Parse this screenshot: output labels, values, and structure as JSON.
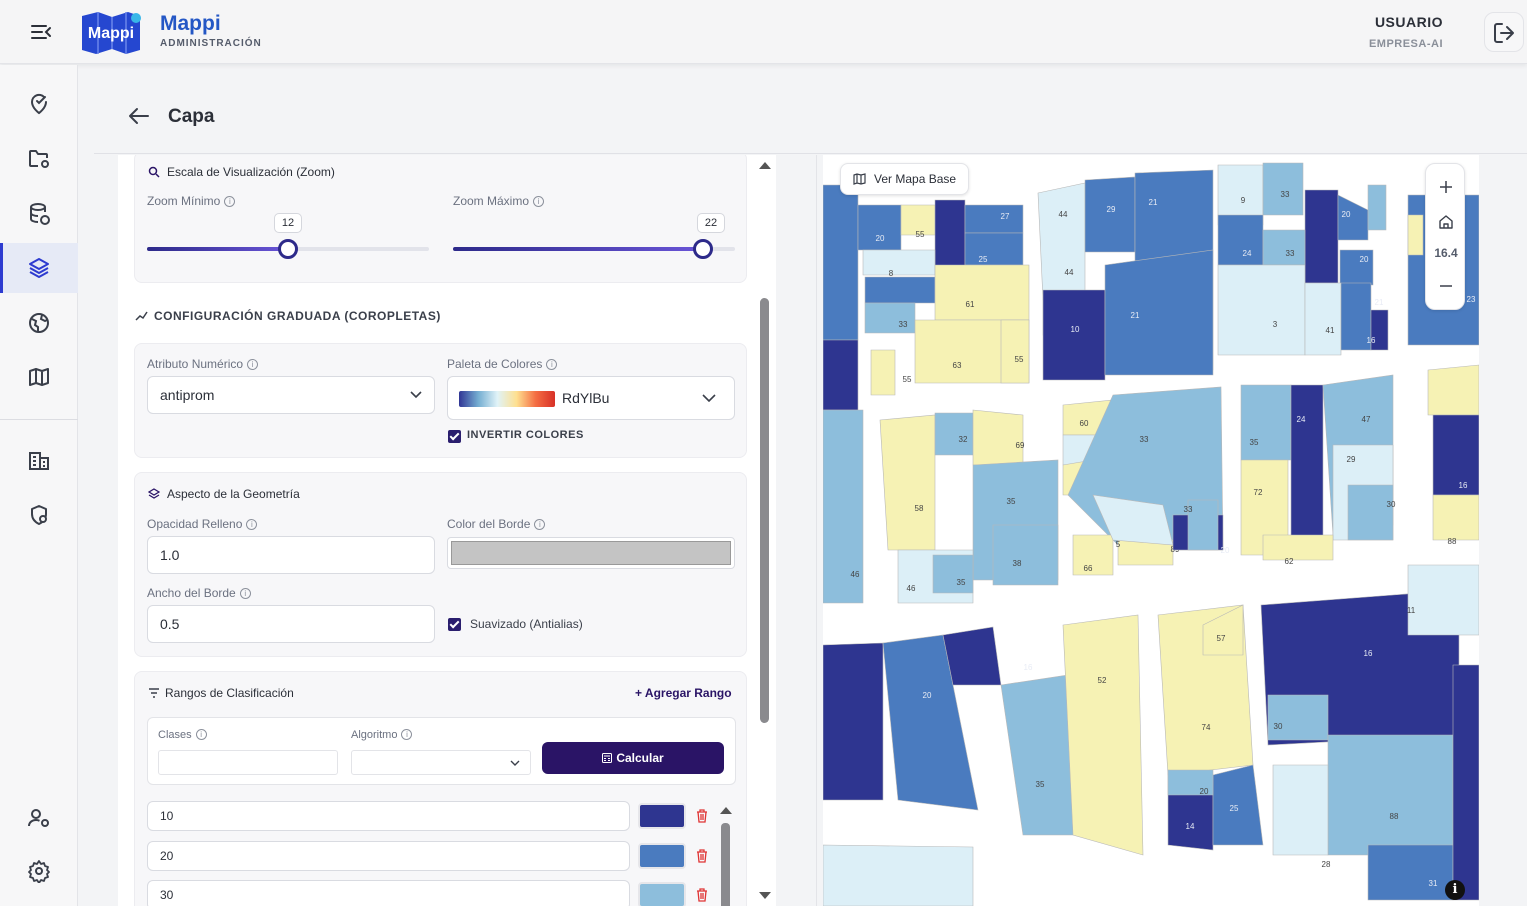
{
  "header": {
    "brand": "Mappi",
    "brand_sub": "ADMINISTRACIÓN",
    "logo_text": "Mappi",
    "user_name": "USUARIO",
    "company": "EMPRESA-AI"
  },
  "sidebar": {
    "items": [
      {
        "icon": "map-pin-check-icon"
      },
      {
        "icon": "folder-settings-icon"
      },
      {
        "icon": "database-upload-icon"
      },
      {
        "icon": "layers-icon",
        "active": true
      },
      {
        "icon": "globe-icon"
      },
      {
        "icon": "map-icon"
      },
      {
        "icon": "building-icon"
      },
      {
        "icon": "shield-user-icon"
      },
      {
        "icon": "users-settings-icon"
      },
      {
        "icon": "gear-icon"
      }
    ]
  },
  "page": {
    "title": "Capa"
  },
  "zoom_section": {
    "title": "Escala de Visualización (Zoom)",
    "min_label": "Zoom Mínimo",
    "max_label": "Zoom Máximo",
    "min_value": "12",
    "max_value": "22",
    "min_fraction": 0.5,
    "max_fraction": 0.9
  },
  "graduated": {
    "title": "CONFIGURACIÓN GRADUADA (COROPLETAS)",
    "attr_label": "Atributo Numérico",
    "attr_value": "antiprom",
    "palette_label": "Paleta de Colores",
    "palette_value": "RdYlBu",
    "invert_label": "INVERTIR COLORES",
    "invert_checked": true
  },
  "geometry": {
    "title": "Aspecto de la Geometría",
    "opacity_label": "Opacidad Relleno",
    "opacity_value": "1.0",
    "border_color_label": "Color del Borde",
    "border_color": "#c4c4c4",
    "border_width_label": "Ancho del Borde",
    "border_width_value": "0.5",
    "antialias_label": "Suavizado (Antialias)",
    "antialias_checked": true
  },
  "ranges": {
    "title": "Rangos de Clasificación",
    "add_label": "+ Agregar Rango",
    "classes_label": "Clases",
    "algorithm_label": "Algoritmo",
    "calc_label": "Calcular",
    "rows": [
      {
        "value": "10",
        "color": "#2e3590"
      },
      {
        "value": "20",
        "color": "#4a7bbf"
      },
      {
        "value": "30",
        "color": "#8dbedc"
      }
    ]
  },
  "map": {
    "base_button": "Ver Mapa Base",
    "zoom_level": "16.4",
    "colors": {
      "c1": "#2e3590",
      "c2": "#4a7bbf",
      "c3": "#8dbedc",
      "c4": "#dceff7",
      "c5": "#f6f2b4"
    }
  }
}
